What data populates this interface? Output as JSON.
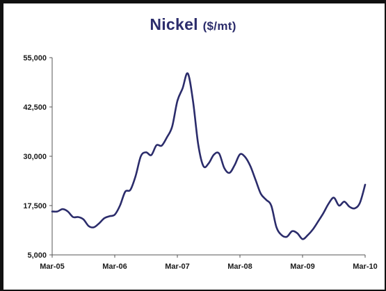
{
  "colors": {
    "line": "#2b2c6b",
    "title": "#2b2c6b",
    "axis": "#555555",
    "frame": "#111111"
  },
  "chart_data": {
    "type": "line",
    "title": "Nickel",
    "title_unit": "($/mt)",
    "xlabel": "",
    "ylabel": "",
    "ylim": [
      5000,
      55000
    ],
    "y_ticks": [
      "5,000",
      "17,500",
      "30,000",
      "42,500",
      "55,000"
    ],
    "y_tick_values": [
      5000,
      17500,
      30000,
      42500,
      55000
    ],
    "x_ticks": [
      "Mar-05",
      "Mar-06",
      "Mar-07",
      "Mar-08",
      "Mar-09",
      "Mar-10"
    ],
    "x_tick_values": [
      0,
      12,
      24,
      36,
      48,
      60
    ],
    "grid": false,
    "legend": "none",
    "series": [
      {
        "x": [
          0,
          1,
          2,
          3,
          4,
          5,
          6,
          7,
          8,
          9,
          10,
          11,
          12,
          13,
          14,
          15,
          16,
          17,
          18,
          19,
          20,
          21,
          22,
          23,
          24,
          25,
          26,
          27,
          28,
          29,
          30,
          31,
          32,
          33,
          34,
          35,
          36,
          37,
          38,
          39,
          40,
          41,
          42,
          43,
          44,
          45,
          46,
          47,
          48,
          49,
          50,
          51,
          52,
          53,
          54,
          55,
          56,
          57,
          58,
          59,
          60
        ],
        "values": [
          16000,
          16000,
          16600,
          16000,
          14600,
          14600,
          14000,
          12300,
          12000,
          13000,
          14300,
          14800,
          15200,
          17500,
          21000,
          21500,
          25000,
          30000,
          31000,
          30300,
          32800,
          32700,
          34800,
          37500,
          44000,
          47200,
          51000,
          44000,
          33000,
          27500,
          28200,
          30400,
          30700,
          27000,
          25800,
          27800,
          30500,
          29800,
          27500,
          24000,
          20500,
          19000,
          17500,
          12000,
          10000,
          9600,
          11000,
          10500,
          9000,
          10000,
          11500,
          13500,
          15600,
          18000,
          19500,
          17500,
          18500,
          17200,
          16800,
          18200,
          22800
        ]
      }
    ]
  }
}
